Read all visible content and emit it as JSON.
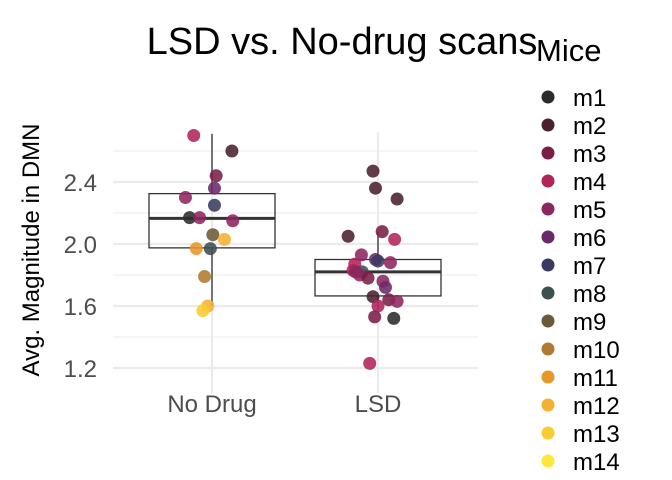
{
  "chart_data": {
    "type": "scatter",
    "subtype": "box-jitter",
    "title": "LSD vs. No-drug scans",
    "xlabel": "",
    "ylabel": "Avg. Magnitude in DMN",
    "categories": [
      "No Drug",
      "LSD"
    ],
    "ylim": [
      1.1,
      2.85
    ],
    "yticks": [
      1.2,
      1.6,
      2.0,
      2.4
    ],
    "grid": true,
    "legend": {
      "title": "Mice",
      "placement": "right",
      "entries": [
        {
          "label": "m1",
          "color": "#2b2b2b"
        },
        {
          "label": "m2",
          "color": "#4a2030"
        },
        {
          "label": "m3",
          "color": "#7a1f45"
        },
        {
          "label": "m4",
          "color": "#b0245a"
        },
        {
          "label": "m5",
          "color": "#8c2660"
        },
        {
          "label": "m6",
          "color": "#6a2a6a"
        },
        {
          "label": "m7",
          "color": "#3a3a60"
        },
        {
          "label": "m8",
          "color": "#3f4f50"
        },
        {
          "label": "m9",
          "color": "#6b5a3a"
        },
        {
          "label": "m10",
          "color": "#b07a30"
        },
        {
          "label": "m11",
          "color": "#e8952a"
        },
        {
          "label": "m12",
          "color": "#f4b030"
        },
        {
          "label": "m13",
          "color": "#f8cc30"
        },
        {
          "label": "m14",
          "color": "#ffe83a"
        }
      ]
    },
    "boxes": [
      {
        "category": "No Drug",
        "q1": 1.975,
        "median": 2.165,
        "q3": 2.325,
        "whisker_low": 1.6,
        "whisker_high": 2.71
      },
      {
        "category": "LSD",
        "q1": 1.665,
        "median": 1.82,
        "q3": 1.9,
        "whisker_low": 1.58,
        "whisker_high": 2.08
      }
    ],
    "points": [
      {
        "category": "No Drug",
        "mouse": "m4",
        "y": 2.7,
        "jitter": -0.22
      },
      {
        "category": "No Drug",
        "mouse": "m2",
        "y": 2.6,
        "jitter": 0.24
      },
      {
        "category": "No Drug",
        "mouse": "m3",
        "y": 2.44,
        "jitter": 0.05
      },
      {
        "category": "No Drug",
        "mouse": "m6",
        "y": 2.36,
        "jitter": 0.03
      },
      {
        "category": "No Drug",
        "mouse": "m5",
        "y": 2.3,
        "jitter": -0.32
      },
      {
        "category": "No Drug",
        "mouse": "m7",
        "y": 2.25,
        "jitter": 0.03
      },
      {
        "category": "No Drug",
        "mouse": "m1",
        "y": 2.17,
        "jitter": -0.27
      },
      {
        "category": "No Drug",
        "mouse": "m5",
        "y": 2.17,
        "jitter": -0.15
      },
      {
        "category": "No Drug",
        "mouse": "m5",
        "y": 2.15,
        "jitter": 0.25
      },
      {
        "category": "No Drug",
        "mouse": "m9",
        "y": 2.06,
        "jitter": 0.01
      },
      {
        "category": "No Drug",
        "mouse": "m12",
        "y": 2.03,
        "jitter": 0.15
      },
      {
        "category": "No Drug",
        "mouse": "m8",
        "y": 1.97,
        "jitter": -0.02
      },
      {
        "category": "No Drug",
        "mouse": "m11",
        "y": 1.97,
        "jitter": -0.19
      },
      {
        "category": "No Drug",
        "mouse": "m10",
        "y": 1.79,
        "jitter": -0.09
      },
      {
        "category": "No Drug",
        "mouse": "m12",
        "y": 1.6,
        "jitter": -0.05
      },
      {
        "category": "No Drug",
        "mouse": "m13",
        "y": 1.57,
        "jitter": -0.11
      },
      {
        "category": "LSD",
        "mouse": "m2",
        "y": 2.47,
        "jitter": -0.06
      },
      {
        "category": "LSD",
        "mouse": "m2",
        "y": 2.36,
        "jitter": -0.03
      },
      {
        "category": "LSD",
        "mouse": "m2",
        "y": 2.29,
        "jitter": 0.23
      },
      {
        "category": "LSD",
        "mouse": "m3",
        "y": 2.08,
        "jitter": 0.05
      },
      {
        "category": "LSD",
        "mouse": "m2",
        "y": 2.05,
        "jitter": -0.36
      },
      {
        "category": "LSD",
        "mouse": "m4",
        "y": 2.03,
        "jitter": 0.2
      },
      {
        "category": "LSD",
        "mouse": "m5",
        "y": 1.93,
        "jitter": -0.2
      },
      {
        "category": "LSD",
        "mouse": "m6",
        "y": 1.9,
        "jitter": -0.03
      },
      {
        "category": "LSD",
        "mouse": "m7",
        "y": 1.89,
        "jitter": 0.0
      },
      {
        "category": "LSD",
        "mouse": "m5",
        "y": 1.88,
        "jitter": 0.15
      },
      {
        "category": "LSD",
        "mouse": "m4",
        "y": 1.87,
        "jitter": -0.28
      },
      {
        "category": "LSD",
        "mouse": "m4",
        "y": 1.83,
        "jitter": -0.3
      },
      {
        "category": "LSD",
        "mouse": "m8",
        "y": 1.82,
        "jitter": -0.19
      },
      {
        "category": "LSD",
        "mouse": "m5",
        "y": 1.82,
        "jitter": -0.27
      },
      {
        "category": "LSD",
        "mouse": "m5",
        "y": 1.8,
        "jitter": -0.22
      },
      {
        "category": "LSD",
        "mouse": "m3",
        "y": 1.78,
        "jitter": -0.12
      },
      {
        "category": "LSD",
        "mouse": "m5",
        "y": 1.76,
        "jitter": 0.06
      },
      {
        "category": "LSD",
        "mouse": "m6",
        "y": 1.72,
        "jitter": 0.09
      },
      {
        "category": "LSD",
        "mouse": "m2",
        "y": 1.66,
        "jitter": -0.06
      },
      {
        "category": "LSD",
        "mouse": "m3",
        "y": 1.64,
        "jitter": 0.13
      },
      {
        "category": "LSD",
        "mouse": "m5",
        "y": 1.63,
        "jitter": 0.23
      },
      {
        "category": "LSD",
        "mouse": "m4",
        "y": 1.6,
        "jitter": 0.0
      },
      {
        "category": "LSD",
        "mouse": "m3",
        "y": 1.53,
        "jitter": -0.04
      },
      {
        "category": "LSD",
        "mouse": "m1",
        "y": 1.52,
        "jitter": 0.19
      },
      {
        "category": "LSD",
        "mouse": "m4",
        "y": 1.23,
        "jitter": -0.1
      }
    ]
  }
}
